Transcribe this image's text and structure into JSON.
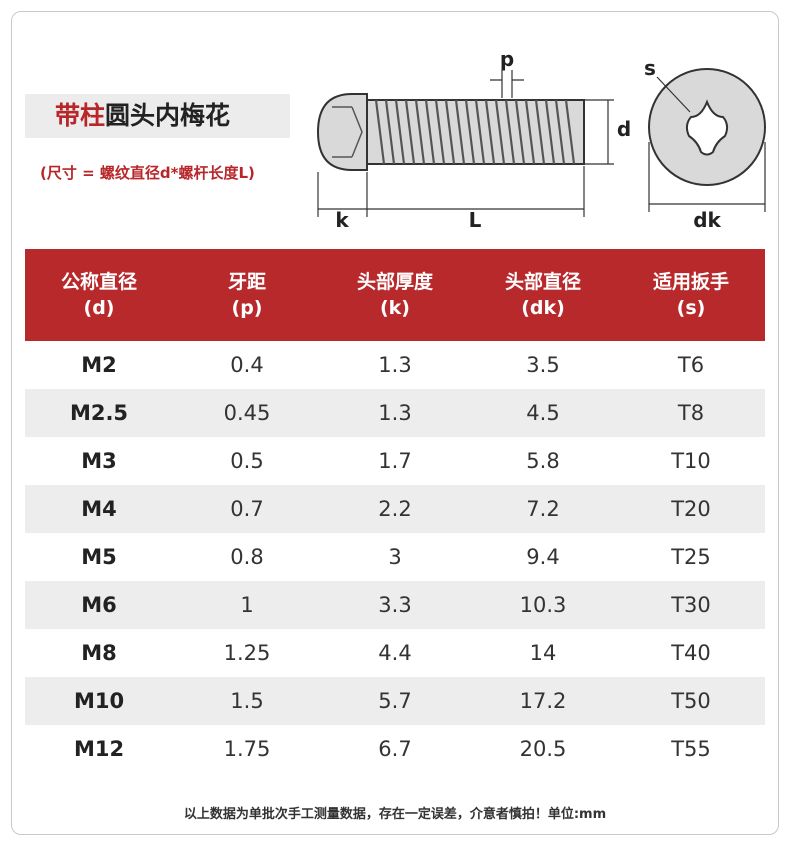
{
  "title": {
    "part_red": "带柱",
    "part_dark": "圆头内梅花"
  },
  "subtitle": "(尺寸 = 螺纹直径d*螺杆长度L)",
  "diagram": {
    "label_p": "p",
    "label_d": "d",
    "label_k": "k",
    "label_L": "L",
    "label_s": "s",
    "label_dk": "dk"
  },
  "table": {
    "headers": [
      {
        "name": "公称直径",
        "symbol": "(d)"
      },
      {
        "name": "牙距",
        "symbol": "(p)"
      },
      {
        "name": "头部厚度",
        "symbol": "(k)"
      },
      {
        "name": "头部直径",
        "symbol": "(dk)"
      },
      {
        "name": "适用扳手",
        "symbol": "(s)"
      }
    ],
    "rows": [
      [
        "M2",
        "0.4",
        "1.3",
        "3.5",
        "T6"
      ],
      [
        "M2.5",
        "0.45",
        "1.3",
        "4.5",
        "T8"
      ],
      [
        "M3",
        "0.5",
        "1.7",
        "5.8",
        "T10"
      ],
      [
        "M4",
        "0.7",
        "2.2",
        "7.2",
        "T20"
      ],
      [
        "M5",
        "0.8",
        "3",
        "9.4",
        "T25"
      ],
      [
        "M6",
        "1",
        "3.3",
        "10.3",
        "T30"
      ],
      [
        "M8",
        "1.25",
        "4.4",
        "14",
        "T40"
      ],
      [
        "M10",
        "1.5",
        "5.7",
        "17.2",
        "T50"
      ],
      [
        "M12",
        "1.75",
        "6.7",
        "20.5",
        "T55"
      ]
    ]
  },
  "footer": "以上数据为单批次手工测量数据，存在一定误差，介意者慎拍！单位:mm"
}
